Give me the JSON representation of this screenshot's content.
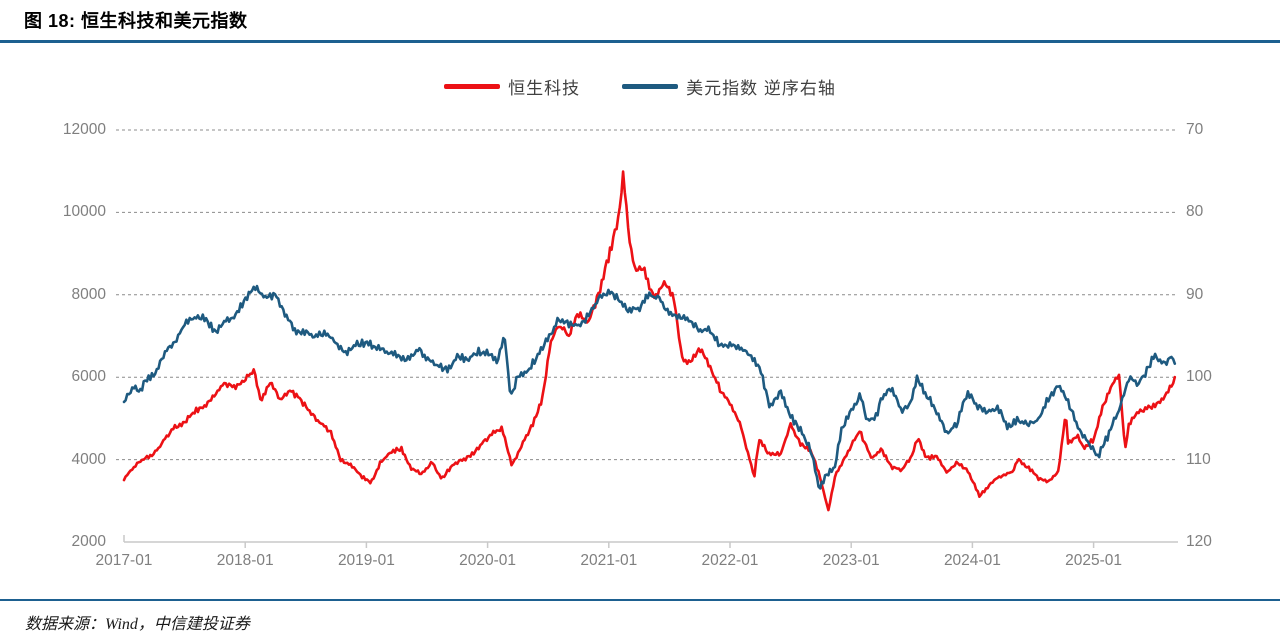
{
  "header": {
    "title": "图 18:  恒生科技和美元指数"
  },
  "legend": [
    {
      "label": "恒生科技"
    },
    {
      "label": "美元指数 逆序右轴"
    }
  ],
  "footer": {
    "source": "数据来源：Wind，中信建投证券"
  },
  "colors": {
    "hstech_red": "#ec1115",
    "dxy_blue": "#1e5a80",
    "rule_blue": "#1d6090",
    "grid_gray": "#8c8c8c",
    "axis_gray": "#c9c9c9",
    "label_gray": "#7f7f7f"
  },
  "chart_data": {
    "type": "line",
    "title": "恒生科技和美元指数",
    "x_ticks": [
      "2017-01",
      "2018-01",
      "2019-01",
      "2020-01",
      "2021-01",
      "2022-01",
      "2023-01",
      "2024-01",
      "2025-01"
    ],
    "left_axis": {
      "series": "恒生科技",
      "ticks": [
        12000,
        10000,
        8000,
        6000,
        4000,
        2000
      ],
      "range": [
        2000,
        12000
      ]
    },
    "right_axis": {
      "series": "美元指数",
      "ticks": [
        70,
        80,
        90,
        100,
        110,
        120
      ],
      "range": [
        70,
        120
      ],
      "reversed": true
    },
    "grid": "dashed-horizontal",
    "legend_position": "top-center",
    "series": [
      {
        "name": "恒生科技",
        "axis": "left",
        "color": "#ec1115",
        "points": [
          [
            2017.0,
            3550
          ],
          [
            2017.08,
            3800
          ],
          [
            2017.17,
            4050
          ],
          [
            2017.25,
            4150
          ],
          [
            2017.33,
            4450
          ],
          [
            2017.42,
            4750
          ],
          [
            2017.5,
            4900
          ],
          [
            2017.58,
            5150
          ],
          [
            2017.67,
            5250
          ],
          [
            2017.75,
            5600
          ],
          [
            2017.83,
            5900
          ],
          [
            2017.92,
            5750
          ],
          [
            2018.0,
            5950
          ],
          [
            2018.07,
            6200
          ],
          [
            2018.13,
            5450
          ],
          [
            2018.21,
            5900
          ],
          [
            2018.29,
            5450
          ],
          [
            2018.37,
            5700
          ],
          [
            2018.46,
            5450
          ],
          [
            2018.54,
            5100
          ],
          [
            2018.62,
            4850
          ],
          [
            2018.71,
            4650
          ],
          [
            2018.79,
            3950
          ],
          [
            2018.87,
            3850
          ],
          [
            2018.96,
            3600
          ],
          [
            2019.04,
            3450
          ],
          [
            2019.12,
            3950
          ],
          [
            2019.21,
            4200
          ],
          [
            2019.29,
            4300
          ],
          [
            2019.37,
            3800
          ],
          [
            2019.46,
            3650
          ],
          [
            2019.54,
            3950
          ],
          [
            2019.62,
            3550
          ],
          [
            2019.71,
            3850
          ],
          [
            2019.79,
            3950
          ],
          [
            2019.87,
            4100
          ],
          [
            2019.96,
            4400
          ],
          [
            2020.04,
            4600
          ],
          [
            2020.12,
            4750
          ],
          [
            2020.2,
            3880
          ],
          [
            2020.29,
            4400
          ],
          [
            2020.37,
            4850
          ],
          [
            2020.45,
            5500
          ],
          [
            2020.52,
            6900
          ],
          [
            2020.58,
            7300
          ],
          [
            2020.67,
            7000
          ],
          [
            2020.75,
            7600
          ],
          [
            2020.83,
            7350
          ],
          [
            2020.92,
            8000
          ],
          [
            2021.0,
            8900
          ],
          [
            2021.08,
            9800
          ],
          [
            2021.12,
            10900
          ],
          [
            2021.17,
            9300
          ],
          [
            2021.22,
            8500
          ],
          [
            2021.29,
            8600
          ],
          [
            2021.37,
            7950
          ],
          [
            2021.46,
            8300
          ],
          [
            2021.54,
            7900
          ],
          [
            2021.6,
            6500
          ],
          [
            2021.67,
            6400
          ],
          [
            2021.75,
            6750
          ],
          [
            2021.83,
            6300
          ],
          [
            2021.92,
            5700
          ],
          [
            2022.0,
            5400
          ],
          [
            2022.08,
            4900
          ],
          [
            2022.2,
            3550
          ],
          [
            2022.24,
            4500
          ],
          [
            2022.33,
            4100
          ],
          [
            2022.42,
            4100
          ],
          [
            2022.5,
            4850
          ],
          [
            2022.58,
            4400
          ],
          [
            2022.67,
            4200
          ],
          [
            2022.75,
            3500
          ],
          [
            2022.81,
            2780
          ],
          [
            2022.87,
            3650
          ],
          [
            2022.96,
            4150
          ],
          [
            2023.07,
            4700
          ],
          [
            2023.17,
            4050
          ],
          [
            2023.25,
            4250
          ],
          [
            2023.33,
            3800
          ],
          [
            2023.42,
            3750
          ],
          [
            2023.5,
            4100
          ],
          [
            2023.55,
            4500
          ],
          [
            2023.62,
            4000
          ],
          [
            2023.71,
            4050
          ],
          [
            2023.79,
            3700
          ],
          [
            2023.87,
            3900
          ],
          [
            2023.96,
            3750
          ],
          [
            2024.06,
            3150
          ],
          [
            2024.17,
            3500
          ],
          [
            2024.25,
            3600
          ],
          [
            2024.33,
            3750
          ],
          [
            2024.38,
            4050
          ],
          [
            2024.46,
            3800
          ],
          [
            2024.54,
            3550
          ],
          [
            2024.62,
            3450
          ],
          [
            2024.71,
            3700
          ],
          [
            2024.74,
            4400
          ],
          [
            2024.77,
            5100
          ],
          [
            2024.79,
            4350
          ],
          [
            2024.87,
            4550
          ],
          [
            2024.92,
            4250
          ],
          [
            2025.0,
            4500
          ],
          [
            2025.08,
            5300
          ],
          [
            2025.17,
            5900
          ],
          [
            2025.21,
            6100
          ],
          [
            2025.26,
            4250
          ],
          [
            2025.29,
            4900
          ],
          [
            2025.37,
            5150
          ],
          [
            2025.46,
            5300
          ],
          [
            2025.54,
            5400
          ],
          [
            2025.6,
            5650
          ],
          [
            2025.67,
            5950
          ]
        ]
      },
      {
        "name": "美元指数 逆序右轴",
        "axis": "right",
        "color": "#1e5a80",
        "points": [
          [
            2017.0,
            102.8
          ],
          [
            2017.08,
            101.0
          ],
          [
            2017.13,
            101.9
          ],
          [
            2017.17,
            100.3
          ],
          [
            2017.25,
            99.5
          ],
          [
            2017.33,
            97.2
          ],
          [
            2017.42,
            96.0
          ],
          [
            2017.5,
            93.7
          ],
          [
            2017.58,
            92.8
          ],
          [
            2017.67,
            93.1
          ],
          [
            2017.75,
            94.7
          ],
          [
            2017.83,
            93.2
          ],
          [
            2017.92,
            92.5
          ],
          [
            2018.0,
            90.5
          ],
          [
            2018.09,
            88.8
          ],
          [
            2018.17,
            90.1
          ],
          [
            2018.25,
            90.0
          ],
          [
            2018.33,
            92.5
          ],
          [
            2018.42,
            94.2
          ],
          [
            2018.5,
            94.5
          ],
          [
            2018.58,
            95.4
          ],
          [
            2018.67,
            94.6
          ],
          [
            2018.75,
            96.0
          ],
          [
            2018.83,
            97.2
          ],
          [
            2018.92,
            96.3
          ],
          [
            2019.0,
            95.7
          ],
          [
            2019.08,
            96.4
          ],
          [
            2019.17,
            97.0
          ],
          [
            2019.25,
            97.3
          ],
          [
            2019.33,
            97.7
          ],
          [
            2019.42,
            96.5
          ],
          [
            2019.5,
            97.6
          ],
          [
            2019.58,
            98.4
          ],
          [
            2019.67,
            99.0
          ],
          [
            2019.75,
            97.6
          ],
          [
            2019.83,
            98.1
          ],
          [
            2019.92,
            96.8
          ],
          [
            2020.0,
            97.3
          ],
          [
            2020.08,
            98.5
          ],
          [
            2020.14,
            95.2
          ],
          [
            2020.19,
            102.5
          ],
          [
            2020.25,
            99.8
          ],
          [
            2020.33,
            99.5
          ],
          [
            2020.42,
            97.2
          ],
          [
            2020.5,
            95.0
          ],
          [
            2020.58,
            92.8
          ],
          [
            2020.67,
            93.5
          ],
          [
            2020.75,
            93.6
          ],
          [
            2020.83,
            92.3
          ],
          [
            2020.92,
            90.3
          ],
          [
            2021.0,
            89.9
          ],
          [
            2021.08,
            90.6
          ],
          [
            2021.17,
            92.1
          ],
          [
            2021.25,
            91.9
          ],
          [
            2021.33,
            90.2
          ],
          [
            2021.42,
            90.5
          ],
          [
            2021.5,
            92.4
          ],
          [
            2021.58,
            92.7
          ],
          [
            2021.67,
            93.0
          ],
          [
            2021.75,
            94.0
          ],
          [
            2021.83,
            94.2
          ],
          [
            2021.92,
            96.1
          ],
          [
            2022.0,
            95.9
          ],
          [
            2022.08,
            96.2
          ],
          [
            2022.17,
            97.5
          ],
          [
            2022.25,
            99.1
          ],
          [
            2022.33,
            103.5
          ],
          [
            2022.42,
            102.0
          ],
          [
            2022.5,
            105.0
          ],
          [
            2022.58,
            106.5
          ],
          [
            2022.67,
            108.9
          ],
          [
            2022.74,
            113.9
          ],
          [
            2022.79,
            112.0
          ],
          [
            2022.87,
            110.5
          ],
          [
            2022.92,
            106.0
          ],
          [
            2023.0,
            104.0
          ],
          [
            2023.08,
            102.0
          ],
          [
            2023.13,
            105.0
          ],
          [
            2023.21,
            104.5
          ],
          [
            2023.25,
            102.3
          ],
          [
            2023.33,
            101.6
          ],
          [
            2023.42,
            104.2
          ],
          [
            2023.5,
            102.9
          ],
          [
            2023.54,
            100.0
          ],
          [
            2023.62,
            102.5
          ],
          [
            2023.71,
            104.5
          ],
          [
            2023.79,
            106.8
          ],
          [
            2023.87,
            105.8
          ],
          [
            2023.96,
            102.0
          ],
          [
            2024.04,
            103.3
          ],
          [
            2024.12,
            104.2
          ],
          [
            2024.21,
            103.6
          ],
          [
            2024.29,
            106.0
          ],
          [
            2024.37,
            104.8
          ],
          [
            2024.46,
            105.5
          ],
          [
            2024.54,
            105.3
          ],
          [
            2024.62,
            102.8
          ],
          [
            2024.71,
            100.7
          ],
          [
            2024.79,
            103.3
          ],
          [
            2024.87,
            106.2
          ],
          [
            2024.96,
            108.2
          ],
          [
            2025.04,
            109.6
          ],
          [
            2025.12,
            107.3
          ],
          [
            2025.21,
            104.0
          ],
          [
            2025.29,
            99.8
          ],
          [
            2025.37,
            100.8
          ],
          [
            2025.46,
            98.7
          ],
          [
            2025.5,
            96.9
          ],
          [
            2025.58,
            98.1
          ],
          [
            2025.63,
            97.4
          ],
          [
            2025.67,
            98.0
          ]
        ]
      }
    ]
  }
}
